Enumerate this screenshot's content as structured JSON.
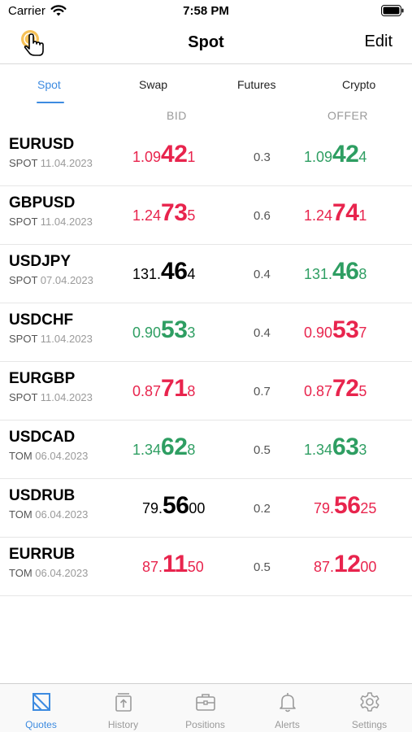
{
  "status_bar": {
    "carrier": "Carrier",
    "time": "7:58 PM"
  },
  "nav": {
    "title": "Spot",
    "edit_label": "Edit"
  },
  "tabs": [
    {
      "label": "Spot",
      "active": true
    },
    {
      "label": "Swap",
      "active": false
    },
    {
      "label": "Futures",
      "active": false
    },
    {
      "label": "Crypto",
      "active": false
    }
  ],
  "columns": {
    "bid": "BID",
    "offer": "OFFER"
  },
  "colors": {
    "accent": "#3d8be0",
    "up": "#2e9e62",
    "down": "#e8244d",
    "neutral": "#000000"
  },
  "quotes": [
    {
      "symbol": "EURUSD",
      "type": "SPOT",
      "date": "11.04.2023",
      "bid": {
        "small": "1.09",
        "big": "42",
        "pip": "1",
        "dir": "down"
      },
      "spread": "0.3",
      "offer": {
        "small": "1.09",
        "big": "42",
        "pip": "4",
        "dir": "up"
      }
    },
    {
      "symbol": "GBPUSD",
      "type": "SPOT",
      "date": "11.04.2023",
      "bid": {
        "small": "1.24",
        "big": "73",
        "pip": "5",
        "dir": "down"
      },
      "spread": "0.6",
      "offer": {
        "small": "1.24",
        "big": "74",
        "pip": "1",
        "dir": "down"
      }
    },
    {
      "symbol": "USDJPY",
      "type": "SPOT",
      "date": "07.04.2023",
      "bid": {
        "small": "131.",
        "big": "46",
        "pip": "4",
        "dir": "neutral"
      },
      "spread": "0.4",
      "offer": {
        "small": "131.",
        "big": "46",
        "pip": "8",
        "dir": "up"
      }
    },
    {
      "symbol": "USDCHF",
      "type": "SPOT",
      "date": "11.04.2023",
      "bid": {
        "small": "0.90",
        "big": "53",
        "pip": "3",
        "dir": "up"
      },
      "spread": "0.4",
      "offer": {
        "small": "0.90",
        "big": "53",
        "pip": "7",
        "dir": "down"
      }
    },
    {
      "symbol": "EURGBP",
      "type": "SPOT",
      "date": "11.04.2023",
      "bid": {
        "small": "0.87",
        "big": "71",
        "pip": "8",
        "dir": "down"
      },
      "spread": "0.7",
      "offer": {
        "small": "0.87",
        "big": "72",
        "pip": "5",
        "dir": "down"
      }
    },
    {
      "symbol": "USDCAD",
      "type": "TOM",
      "date": "06.04.2023",
      "bid": {
        "small": "1.34",
        "big": "62",
        "pip": "8",
        "dir": "up"
      },
      "spread": "0.5",
      "offer": {
        "small": "1.34",
        "big": "63",
        "pip": "3",
        "dir": "up"
      }
    },
    {
      "symbol": "USDRUB",
      "type": "TOM",
      "date": "06.04.2023",
      "bid": {
        "small": "79.",
        "big": "56",
        "pip": "00",
        "dir": "neutral"
      },
      "spread": "0.2",
      "offer": {
        "small": "79.",
        "big": "56",
        "pip": "25",
        "dir": "down"
      }
    },
    {
      "symbol": "EURRUB",
      "type": "TOM",
      "date": "06.04.2023",
      "bid": {
        "small": "87.",
        "big": "11",
        "pip": "50",
        "dir": "down"
      },
      "spread": "0.5",
      "offer": {
        "small": "87.",
        "big": "12",
        "pip": "00",
        "dir": "down"
      }
    }
  ],
  "tab_bar": [
    {
      "label": "Quotes",
      "icon": "quotes-icon",
      "active": true
    },
    {
      "label": "History",
      "icon": "history-icon",
      "active": false
    },
    {
      "label": "Positions",
      "icon": "briefcase-icon",
      "active": false
    },
    {
      "label": "Alerts",
      "icon": "bell-icon",
      "active": false
    },
    {
      "label": "Settings",
      "icon": "gear-icon",
      "active": false
    }
  ]
}
